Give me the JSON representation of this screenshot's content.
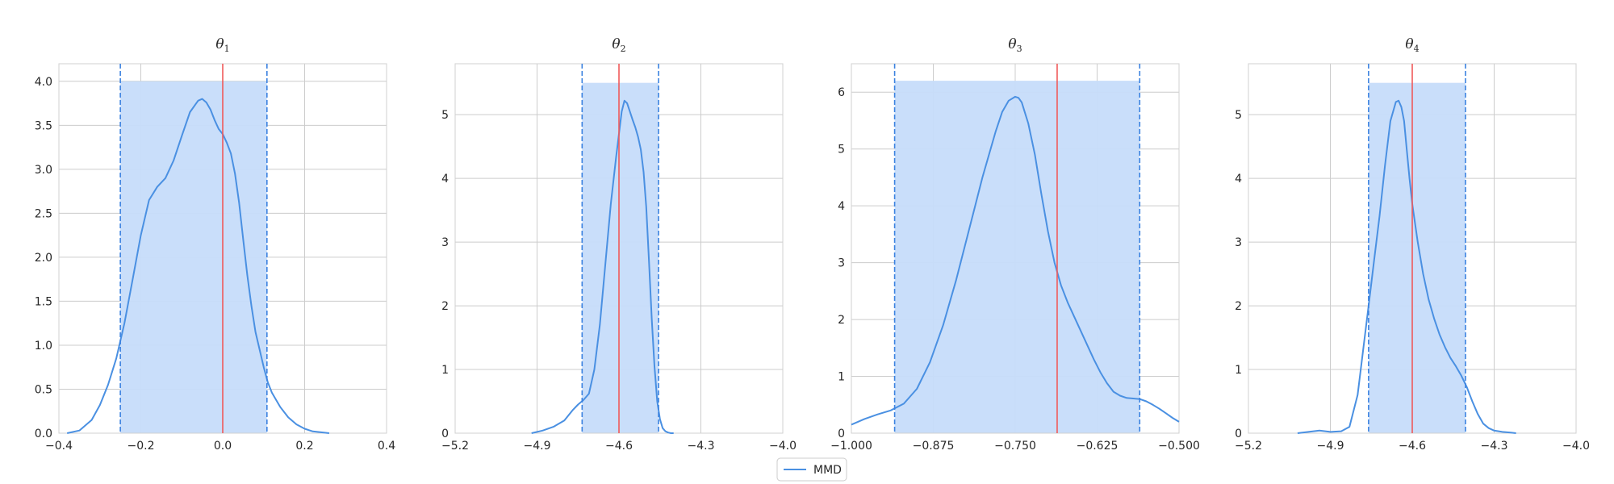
{
  "colors": {
    "kde": "#4a90e2",
    "band_fill": "#c6dcfa",
    "ci_line": "#3b82e0",
    "true_line": "#f05a5a",
    "grid": "#cccccc",
    "frame": "#d0d0d0"
  },
  "legend": {
    "label": "MMD"
  },
  "chart_data": [
    {
      "type": "line",
      "title": "θ",
      "title_sub": "1",
      "xlim": [
        -0.4,
        0.4
      ],
      "ylim": [
        0,
        4.2
      ],
      "xticks": [
        -0.4,
        -0.2,
        0.0,
        0.2,
        0.4
      ],
      "xtick_labels": [
        "−0.4",
        "−0.2",
        "0.0",
        "0.2",
        "0.4"
      ],
      "yticks": [
        0,
        0.5,
        1.0,
        1.5,
        2.0,
        2.5,
        3.0,
        3.5,
        4.0
      ],
      "ytick_labels": [
        "0.0",
        "0.5",
        "1.0",
        "1.5",
        "2.0",
        "2.5",
        "3.0",
        "3.5",
        "4.0"
      ],
      "ci": [
        -0.25,
        0.108
      ],
      "band_height": 4.0,
      "true_value": 0.0,
      "series": [
        {
          "name": "MMD",
          "x": [
            -0.38,
            -0.35,
            -0.32,
            -0.3,
            -0.28,
            -0.26,
            -0.24,
            -0.22,
            -0.2,
            -0.18,
            -0.16,
            -0.14,
            -0.12,
            -0.1,
            -0.08,
            -0.06,
            -0.05,
            -0.04,
            -0.03,
            -0.02,
            -0.01,
            0.0,
            0.01,
            0.02,
            0.03,
            0.04,
            0.05,
            0.06,
            0.07,
            0.08,
            0.09,
            0.1,
            0.11,
            0.12,
            0.14,
            0.16,
            0.18,
            0.2,
            0.22,
            0.24,
            0.26
          ],
          "y": [
            0.0,
            0.03,
            0.15,
            0.32,
            0.55,
            0.85,
            1.25,
            1.75,
            2.25,
            2.65,
            2.8,
            2.9,
            3.1,
            3.38,
            3.65,
            3.78,
            3.8,
            3.76,
            3.68,
            3.56,
            3.46,
            3.4,
            3.3,
            3.18,
            2.95,
            2.62,
            2.2,
            1.8,
            1.45,
            1.15,
            0.95,
            0.75,
            0.58,
            0.46,
            0.3,
            0.18,
            0.1,
            0.05,
            0.02,
            0.01,
            0.0
          ]
        }
      ]
    },
    {
      "type": "line",
      "title": "θ",
      "title_sub": "2",
      "xlim": [
        -5.2,
        -4.0
      ],
      "ylim": [
        0,
        5.8
      ],
      "xticks": [
        -5.2,
        -4.9,
        -4.6,
        -4.3,
        -4.0
      ],
      "xtick_labels": [
        "−5.2",
        "−4.9",
        "−4.6",
        "−4.3",
        "−4.0"
      ],
      "yticks": [
        0,
        1,
        2,
        3,
        4,
        5
      ],
      "ytick_labels": [
        "0",
        "1",
        "2",
        "3",
        "4",
        "5"
      ],
      "ci": [
        -4.735,
        -4.455
      ],
      "band_height": 5.5,
      "true_value": -4.6,
      "series": [
        {
          "name": "MMD",
          "x": [
            -4.92,
            -4.88,
            -4.84,
            -4.8,
            -4.77,
            -4.75,
            -4.73,
            -4.71,
            -4.69,
            -4.67,
            -4.65,
            -4.63,
            -4.61,
            -4.6,
            -4.59,
            -4.58,
            -4.57,
            -4.56,
            -4.55,
            -4.54,
            -4.53,
            -4.52,
            -4.51,
            -4.5,
            -4.49,
            -4.48,
            -4.47,
            -4.46,
            -4.45,
            -4.44,
            -4.43,
            -4.42,
            -4.41,
            -4.4
          ],
          "y": [
            0.0,
            0.04,
            0.1,
            0.2,
            0.36,
            0.45,
            0.52,
            0.62,
            1.0,
            1.7,
            2.65,
            3.6,
            4.35,
            4.7,
            5.05,
            5.22,
            5.18,
            5.05,
            4.92,
            4.8,
            4.65,
            4.45,
            4.1,
            3.55,
            2.7,
            1.8,
            1.05,
            0.5,
            0.22,
            0.08,
            0.03,
            0.01,
            0.0,
            0.0
          ]
        }
      ]
    },
    {
      "type": "line",
      "title": "θ",
      "title_sub": "3",
      "xlim": [
        -1.0,
        -0.5
      ],
      "ylim": [
        0,
        6.5
      ],
      "xticks": [
        -1.0,
        -0.875,
        -0.75,
        -0.625,
        -0.5
      ],
      "xtick_labels": [
        "−1.000",
        "−0.875",
        "−0.750",
        "−0.625",
        "−0.500"
      ],
      "yticks": [
        0,
        1,
        2,
        3,
        4,
        5,
        6
      ],
      "ytick_labels": [
        "0",
        "1",
        "2",
        "3",
        "4",
        "5",
        "6"
      ],
      "ci": [
        -0.934,
        -0.56
      ],
      "band_height": 6.2,
      "true_value": -0.686,
      "series": [
        {
          "name": "MMD",
          "x": [
            -1.0,
            -0.98,
            -0.96,
            -0.94,
            -0.92,
            -0.9,
            -0.88,
            -0.86,
            -0.84,
            -0.82,
            -0.8,
            -0.78,
            -0.77,
            -0.76,
            -0.75,
            -0.745,
            -0.74,
            -0.73,
            -0.72,
            -0.71,
            -0.7,
            -0.69,
            -0.68,
            -0.67,
            -0.66,
            -0.65,
            -0.64,
            -0.63,
            -0.62,
            -0.61,
            -0.6,
            -0.59,
            -0.58,
            -0.57,
            -0.56,
            -0.55,
            -0.54,
            -0.53,
            -0.52,
            -0.51,
            -0.5
          ],
          "y": [
            0.15,
            0.25,
            0.33,
            0.4,
            0.52,
            0.78,
            1.25,
            1.9,
            2.7,
            3.6,
            4.5,
            5.3,
            5.65,
            5.85,
            5.92,
            5.9,
            5.82,
            5.45,
            4.9,
            4.2,
            3.55,
            3.0,
            2.6,
            2.3,
            2.05,
            1.8,
            1.55,
            1.3,
            1.07,
            0.88,
            0.73,
            0.66,
            0.62,
            0.61,
            0.6,
            0.56,
            0.5,
            0.43,
            0.35,
            0.27,
            0.2
          ]
        }
      ]
    },
    {
      "type": "line",
      "title": "θ",
      "title_sub": "4",
      "xlim": [
        -5.2,
        -4.0
      ],
      "ylim": [
        0,
        5.8
      ],
      "xticks": [
        -5.2,
        -4.9,
        -4.6,
        -4.3,
        -4.0
      ],
      "xtick_labels": [
        "−5.2",
        "−4.9",
        "−4.6",
        "−4.3",
        "−4.0"
      ],
      "yticks": [
        0,
        1,
        2,
        3,
        4,
        5
      ],
      "ytick_labels": [
        "0",
        "1",
        "2",
        "3",
        "4",
        "5"
      ],
      "ci": [
        -4.76,
        -4.405
      ],
      "band_height": 5.5,
      "true_value": -4.6,
      "series": [
        {
          "name": "MMD",
          "x": [
            -5.02,
            -4.98,
            -4.94,
            -4.9,
            -4.86,
            -4.83,
            -4.8,
            -4.78,
            -4.76,
            -4.74,
            -4.72,
            -4.7,
            -4.68,
            -4.66,
            -4.65,
            -4.64,
            -4.63,
            -4.62,
            -4.61,
            -4.6,
            -4.58,
            -4.56,
            -4.54,
            -4.52,
            -4.5,
            -4.48,
            -4.46,
            -4.44,
            -4.42,
            -4.4,
            -4.38,
            -4.36,
            -4.34,
            -4.32,
            -4.3,
            -4.27,
            -4.24,
            -4.22
          ],
          "y": [
            0.0,
            0.02,
            0.04,
            0.02,
            0.03,
            0.1,
            0.6,
            1.3,
            2.0,
            2.7,
            3.4,
            4.2,
            4.9,
            5.2,
            5.22,
            5.12,
            4.9,
            4.45,
            4.0,
            3.6,
            3.0,
            2.5,
            2.1,
            1.8,
            1.55,
            1.35,
            1.18,
            1.05,
            0.9,
            0.72,
            0.5,
            0.3,
            0.15,
            0.08,
            0.04,
            0.02,
            0.01,
            0.0
          ]
        }
      ]
    }
  ]
}
